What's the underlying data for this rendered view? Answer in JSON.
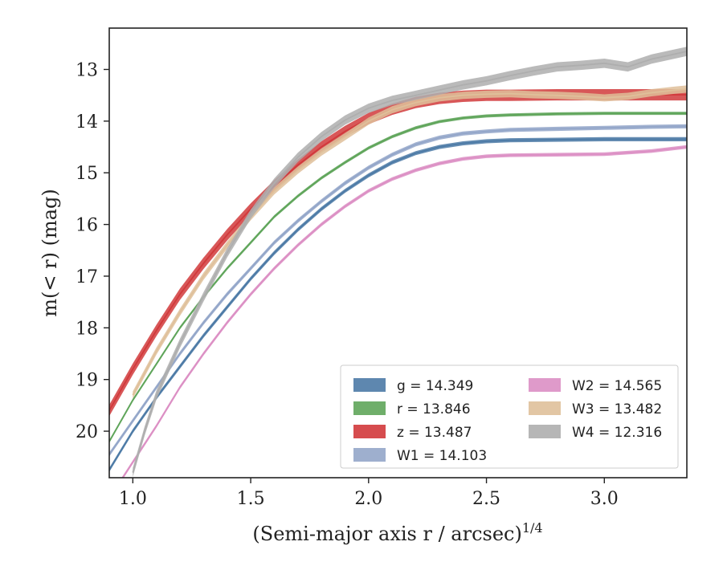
{
  "chart_data": {
    "type": "line",
    "title": "",
    "xlabel": "(Semi-major axis r / arcsec)",
    "xlabel_sup": "1/4",
    "ylabel": "m(< r) (mag)",
    "xlim": [
      0.9,
      3.35
    ],
    "ylim": [
      20.9,
      12.2
    ],
    "y_inverted": true,
    "x_ticks": [
      "1.0",
      "1.5",
      "2.0",
      "2.5",
      "3.0"
    ],
    "y_ticks": [
      "13",
      "14",
      "15",
      "16",
      "17",
      "18",
      "19",
      "20"
    ],
    "grid": false,
    "legend_position": "lower-right",
    "series": [
      {
        "name": "g = 14.349",
        "color": "#4c7aa6",
        "x": [
          0.9,
          1.0,
          1.1,
          1.2,
          1.3,
          1.4,
          1.5,
          1.6,
          1.7,
          1.8,
          1.9,
          2.0,
          2.1,
          2.2,
          2.3,
          2.4,
          2.5,
          2.6,
          2.8,
          3.0,
          3.2,
          3.35
        ],
        "y": [
          20.75,
          20.0,
          19.35,
          18.75,
          18.15,
          17.6,
          17.05,
          16.55,
          16.1,
          15.7,
          15.35,
          15.05,
          14.8,
          14.62,
          14.5,
          14.43,
          14.39,
          14.37,
          14.36,
          14.35,
          14.35,
          14.35
        ],
        "band": 0.08
      },
      {
        "name": "r = 13.846",
        "color": "#5fa55a",
        "x": [
          0.9,
          1.0,
          1.1,
          1.2,
          1.3,
          1.4,
          1.5,
          1.6,
          1.7,
          1.8,
          1.9,
          2.0,
          2.1,
          2.2,
          2.3,
          2.4,
          2.5,
          2.6,
          2.8,
          3.0,
          3.2,
          3.35
        ],
        "y": [
          20.2,
          19.4,
          18.7,
          18.0,
          17.4,
          16.85,
          16.35,
          15.85,
          15.45,
          15.1,
          14.8,
          14.52,
          14.3,
          14.13,
          14.01,
          13.94,
          13.9,
          13.88,
          13.86,
          13.85,
          13.85,
          13.85
        ],
        "band": 0.06
      },
      {
        "name": "z = 13.487",
        "color": "#d1393b",
        "x": [
          0.9,
          1.0,
          1.1,
          1.2,
          1.3,
          1.4,
          1.5,
          1.6,
          1.7,
          1.8,
          1.9,
          2.0,
          2.1,
          2.2,
          2.3,
          2.4,
          2.5,
          2.6,
          2.8,
          3.0,
          3.2,
          3.35
        ],
        "y": [
          19.6,
          18.8,
          18.05,
          17.35,
          16.75,
          16.2,
          15.7,
          15.25,
          14.85,
          14.5,
          14.2,
          13.95,
          13.77,
          13.64,
          13.56,
          13.52,
          13.5,
          13.5,
          13.49,
          13.49,
          13.49,
          13.49
        ],
        "band": 0.22
      },
      {
        "name": "W1 = 14.103",
        "color": "#93a6c9",
        "x": [
          0.9,
          1.0,
          1.1,
          1.2,
          1.3,
          1.4,
          1.5,
          1.6,
          1.7,
          1.8,
          1.9,
          2.0,
          2.1,
          2.2,
          2.3,
          2.4,
          2.5,
          2.6,
          2.8,
          3.0,
          3.2,
          3.35
        ],
        "y": [
          20.45,
          19.8,
          19.15,
          18.5,
          17.9,
          17.35,
          16.85,
          16.35,
          15.93,
          15.55,
          15.2,
          14.9,
          14.65,
          14.45,
          14.32,
          14.24,
          14.2,
          14.17,
          14.15,
          14.13,
          14.11,
          14.1
        ],
        "band": 0.08
      },
      {
        "name": "W2 = 14.565",
        "color": "#dc8fc4",
        "x": [
          0.9,
          1.0,
          1.1,
          1.2,
          1.3,
          1.4,
          1.5,
          1.6,
          1.7,
          1.8,
          1.9,
          2.0,
          2.1,
          2.2,
          2.3,
          2.4,
          2.5,
          2.6,
          2.8,
          3.0,
          3.2,
          3.35
        ],
        "y": [
          21.3,
          20.6,
          19.9,
          19.15,
          18.5,
          17.9,
          17.35,
          16.85,
          16.4,
          16.0,
          15.65,
          15.35,
          15.12,
          14.95,
          14.82,
          14.73,
          14.68,
          14.66,
          14.65,
          14.64,
          14.58,
          14.5
        ],
        "band": 0.07
      },
      {
        "name": "W3 = 13.482",
        "color": "#dfc09a",
        "x": [
          1.0,
          1.1,
          1.2,
          1.3,
          1.4,
          1.5,
          1.6,
          1.7,
          1.8,
          1.9,
          2.0,
          2.1,
          2.2,
          2.3,
          2.4,
          2.5,
          2.6,
          2.7,
          2.8,
          2.9,
          3.0,
          3.1,
          3.2,
          3.3,
          3.35
        ],
        "y": [
          19.3,
          18.45,
          17.7,
          17.0,
          16.4,
          15.85,
          15.35,
          14.95,
          14.6,
          14.3,
          14.0,
          13.78,
          13.64,
          13.55,
          13.5,
          13.48,
          13.47,
          13.49,
          13.5,
          13.52,
          13.55,
          13.52,
          13.45,
          13.4,
          13.38
        ],
        "band": 0.14
      },
      {
        "name": "W4 = 12.316",
        "color": "#aeaeae",
        "x": [
          1.0,
          1.05,
          1.1,
          1.15,
          1.2,
          1.3,
          1.4,
          1.5,
          1.6,
          1.7,
          1.8,
          1.9,
          2.0,
          2.1,
          2.2,
          2.3,
          2.4,
          2.5,
          2.6,
          2.7,
          2.8,
          2.9,
          3.0,
          3.1,
          3.2,
          3.3,
          3.35
        ],
        "y": [
          20.8,
          20.0,
          19.3,
          18.8,
          18.3,
          17.4,
          16.55,
          15.8,
          15.2,
          14.7,
          14.3,
          13.98,
          13.75,
          13.6,
          13.5,
          13.4,
          13.3,
          13.22,
          13.12,
          13.03,
          12.95,
          12.92,
          12.88,
          12.95,
          12.8,
          12.7,
          12.65
        ],
        "band": 0.18
      }
    ]
  }
}
